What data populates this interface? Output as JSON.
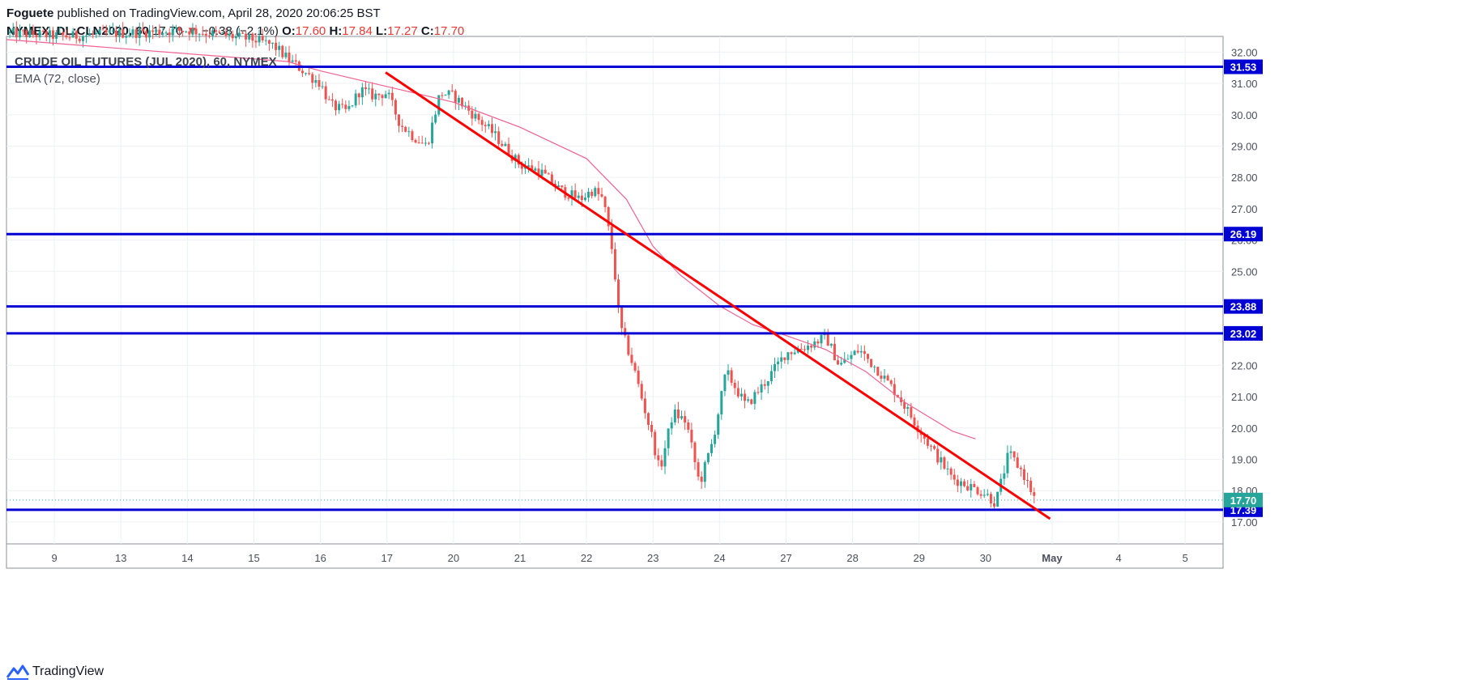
{
  "header": {
    "publisher": "Foguete",
    "publish_text": "published on TradingView.com, April 28, 2020 20:06:25 BST",
    "symbol": "NYMEX_DL:CLN2020, 60",
    "last": "17.70",
    "change_arrow": "▼",
    "change": "−0.38 (−2.1%)",
    "open_label": "O:",
    "open": "17.60",
    "high_label": "H:",
    "high": "17.84",
    "low_label": "L:",
    "low": "17.27",
    "close_label": "C:",
    "close": "17.70"
  },
  "legend": {
    "title": "CRUDE OIL FUTURES (JUL 2020), 60, NYMEX",
    "indicator": "EMA (72, close)"
  },
  "footer": {
    "brand": "TradingView",
    "icon": "tradingview-logo-icon"
  },
  "colors": {
    "up": "#26a69a",
    "down": "#ef5350",
    "level_line": "#0000d4",
    "trend_line": "#ff0000",
    "ema": "#f06292",
    "price_badge": "#26a69a"
  },
  "chart_data": {
    "type": "candlestick",
    "timeframe": "60",
    "ylim": [
      16.3,
      32.5
    ],
    "y_ticks": [
      "17.00",
      "18.00",
      "19.00",
      "20.00",
      "21.00",
      "22.00",
      "23.00",
      "24.00",
      "25.00",
      "26.00",
      "27.00",
      "28.00",
      "29.00",
      "30.00",
      "31.00",
      "32.00"
    ],
    "x_ticks": [
      "9",
      "13",
      "14",
      "15",
      "16",
      "17",
      "20",
      "21",
      "22",
      "23",
      "24",
      "27",
      "28",
      "29",
      "30",
      "May",
      "4",
      "5"
    ],
    "x_range": [
      -0.72,
      17.57
    ],
    "horizontal_levels": [
      31.53,
      26.19,
      23.88,
      23.02,
      17.39
    ],
    "last_price": 17.7,
    "trend_line": {
      "start": {
        "x": 4.98,
        "y": 31.35
      },
      "end": {
        "x": 14.97,
        "y": 17.1
      }
    },
    "ema_72": [
      {
        "x": -0.72,
        "y": 32.4
      },
      {
        "x": 3.5,
        "y": 31.7
      },
      {
        "x": 4.0,
        "y": 31.4
      },
      {
        "x": 5.0,
        "y": 30.9
      },
      {
        "x": 6.0,
        "y": 30.4
      },
      {
        "x": 7.0,
        "y": 29.6
      },
      {
        "x": 8.0,
        "y": 28.6
      },
      {
        "x": 8.6,
        "y": 27.3
      },
      {
        "x": 9.0,
        "y": 25.8
      },
      {
        "x": 9.4,
        "y": 24.9
      },
      {
        "x": 10.0,
        "y": 23.9
      },
      {
        "x": 10.5,
        "y": 23.3
      },
      {
        "x": 11.0,
        "y": 22.95
      },
      {
        "x": 11.6,
        "y": 22.5
      },
      {
        "x": 12.2,
        "y": 21.8
      },
      {
        "x": 12.8,
        "y": 20.8
      },
      {
        "x": 13.5,
        "y": 19.9
      },
      {
        "x": 13.85,
        "y": 19.65
      }
    ],
    "price_path": [
      {
        "x": -0.72,
        "y": 32.6
      },
      {
        "x": 0.2,
        "y": 32.5
      },
      {
        "x": 1.0,
        "y": 32.6
      },
      {
        "x": 2.0,
        "y": 32.7
      },
      {
        "x": 3.0,
        "y": 32.4
      },
      {
        "x": 3.3,
        "y": 32.2
      },
      {
        "x": 3.5,
        "y": 31.8
      },
      {
        "x": 3.8,
        "y": 31.3
      },
      {
        "x": 4.0,
        "y": 31.0
      },
      {
        "x": 4.15,
        "y": 30.3
      },
      {
        "x": 4.4,
        "y": 30.1
      },
      {
        "x": 4.6,
        "y": 30.8
      },
      {
        "x": 4.8,
        "y": 30.6
      },
      {
        "x": 5.0,
        "y": 30.7
      },
      {
        "x": 5.2,
        "y": 29.7
      },
      {
        "x": 5.4,
        "y": 29.3
      },
      {
        "x": 5.6,
        "y": 29.0
      },
      {
        "x": 5.8,
        "y": 30.7
      },
      {
        "x": 6.0,
        "y": 30.6
      },
      {
        "x": 6.3,
        "y": 30.0
      },
      {
        "x": 6.6,
        "y": 29.4
      },
      {
        "x": 7.0,
        "y": 28.4
      },
      {
        "x": 7.3,
        "y": 28.2
      },
      {
        "x": 7.6,
        "y": 27.6
      },
      {
        "x": 7.9,
        "y": 27.3
      },
      {
        "x": 8.1,
        "y": 27.6
      },
      {
        "x": 8.25,
        "y": 27.3
      },
      {
        "x": 8.4,
        "y": 25.5
      },
      {
        "x": 8.5,
        "y": 23.3
      },
      {
        "x": 8.7,
        "y": 22.0
      },
      {
        "x": 8.8,
        "y": 21.2
      },
      {
        "x": 9.0,
        "y": 19.6
      },
      {
        "x": 9.1,
        "y": 18.6
      },
      {
        "x": 9.3,
        "y": 20.5
      },
      {
        "x": 9.5,
        "y": 20.2
      },
      {
        "x": 9.7,
        "y": 18.2
      },
      {
        "x": 9.9,
        "y": 19.6
      },
      {
        "x": 10.1,
        "y": 21.8
      },
      {
        "x": 10.4,
        "y": 20.7
      },
      {
        "x": 10.7,
        "y": 21.5
      },
      {
        "x": 11.0,
        "y": 22.4
      },
      {
        "x": 11.3,
        "y": 22.6
      },
      {
        "x": 11.6,
        "y": 22.9
      },
      {
        "x": 11.8,
        "y": 22.0
      },
      {
        "x": 12.1,
        "y": 22.5
      },
      {
        "x": 12.4,
        "y": 21.8
      },
      {
        "x": 12.7,
        "y": 21.0
      },
      {
        "x": 12.9,
        "y": 20.3
      },
      {
        "x": 13.2,
        "y": 19.3
      },
      {
        "x": 13.5,
        "y": 18.4
      },
      {
        "x": 13.8,
        "y": 18.1
      },
      {
        "x": 14.0,
        "y": 17.9
      },
      {
        "x": 14.15,
        "y": 17.6
      },
      {
        "x": 14.35,
        "y": 19.2
      },
      {
        "x": 14.55,
        "y": 18.6
      },
      {
        "x": 14.75,
        "y": 17.7
      }
    ]
  }
}
